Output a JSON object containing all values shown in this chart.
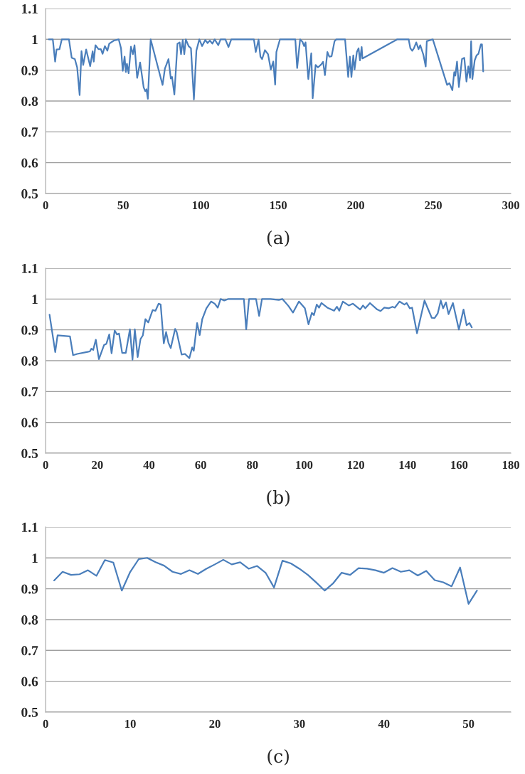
{
  "chart_data": [
    {
      "type": "line",
      "title": "(a)",
      "xlim": [
        0,
        300
      ],
      "xticks": [
        0,
        50,
        100,
        150,
        200,
        250,
        300
      ],
      "ylim": [
        0.5,
        1.1
      ],
      "yticks": [
        0.5,
        0.6,
        0.7,
        0.8,
        0.9,
        1,
        1.1
      ],
      "grid": "y",
      "marker": "none",
      "line_style": "solid",
      "series": [
        {
          "color": "#4a7ebb",
          "x": [
            2.0,
            4.6,
            6.1,
            7.0,
            8.9,
            10.4,
            15.0,
            16.8,
            18.8,
            20.3,
            21.9,
            23.1,
            24.2,
            26.1,
            28.7,
            30.3,
            31.0,
            32.1,
            34.1,
            35.6,
            36.7,
            38.2,
            39.8,
            41.0,
            44.0,
            47.1,
            48.6,
            49.7,
            50.9,
            51.7,
            52.4,
            53.5,
            55.0,
            56.3,
            57.3,
            59.0,
            60.9,
            63.2,
            64.2,
            65.0,
            65.9,
            67.7,
            75.4,
            76.9,
            79.2,
            80.7,
            81.5,
            83.0,
            85.0,
            86.4,
            87.3,
            88.4,
            89.4,
            90.4,
            92.2,
            93.7,
            95.6,
            97.2,
            99.1,
            100.9,
            102.9,
            104.4,
            105.9,
            107.5,
            109.0,
            111.3,
            112.8,
            115.9,
            117.9,
            119.7,
            134.3,
            135.5,
            137.3,
            138.5,
            139.6,
            141.4,
            143.4,
            145.2,
            146.8,
            148.0,
            148.8,
            151.1,
            161.0,
            162.2,
            164.1,
            165.6,
            166.7,
            167.6,
            169.4,
            171.3,
            172.2,
            174.1,
            175.6,
            177.8,
            178.9,
            180.1,
            181.7,
            182.9,
            184.4,
            186.3,
            187.5,
            193.1,
            195.1,
            196.2,
            197.2,
            198.4,
            199.2,
            200.7,
            201.8,
            202.7,
            203.8,
            204.3,
            226.8,
            234.1,
            235.2,
            236.4,
            237.5,
            239.0,
            240.5,
            241.6,
            243.6,
            245.1,
            245.8,
            249.7,
            258.9,
            260.4,
            262.3,
            263.5,
            264.2,
            265.3,
            266.5,
            268.5,
            270.0,
            271.4,
            272.6,
            273.7,
            274.4,
            275.2,
            276.7,
            277.9,
            279.1,
            280.7,
            281.4,
            282.2
          ],
          "values": [
            1.0,
            1.0,
            0.928,
            0.967,
            0.968,
            1.0,
            1.0,
            0.94,
            0.936,
            0.909,
            0.819,
            0.962,
            0.917,
            0.967,
            0.913,
            0.961,
            0.928,
            0.981,
            0.968,
            0.968,
            0.953,
            0.978,
            0.963,
            0.986,
            0.996,
            1.0,
            0.971,
            0.898,
            0.944,
            0.894,
            0.921,
            0.89,
            0.976,
            0.952,
            0.981,
            0.875,
            0.925,
            0.844,
            0.832,
            0.838,
            0.807,
            1.0,
            0.852,
            0.905,
            0.936,
            0.873,
            0.878,
            0.821,
            0.986,
            0.99,
            0.952,
            0.998,
            0.952,
            1.0,
            0.978,
            0.971,
            0.805,
            0.963,
            1.0,
            0.978,
            0.998,
            0.988,
            0.996,
            0.986,
            1.0,
            0.981,
            1.0,
            1.0,
            0.975,
            1.0,
            1.0,
            0.959,
            0.999,
            0.944,
            0.936,
            0.965,
            0.952,
            0.902,
            0.928,
            0.853,
            0.959,
            1.0,
            1.0,
            0.907,
            1.0,
            0.992,
            0.978,
            0.99,
            0.871,
            0.955,
            0.809,
            0.917,
            0.909,
            0.919,
            0.927,
            0.884,
            0.959,
            0.944,
            0.945,
            0.994,
            1.0,
            1.0,
            0.878,
            0.944,
            0.878,
            0.948,
            0.902,
            0.959,
            0.971,
            0.932,
            0.975,
            0.938,
            1.0,
            1.0,
            0.971,
            0.963,
            0.971,
            0.99,
            0.968,
            0.981,
            0.95,
            0.912,
            0.994,
            1.0,
            0.852,
            0.858,
            0.835,
            0.894,
            0.882,
            0.928,
            0.845,
            0.936,
            0.94,
            0.863,
            0.912,
            0.875,
            0.994,
            0.871,
            0.932,
            0.948,
            0.953,
            0.984,
            0.984,
            0.896
          ]
        }
      ]
    },
    {
      "type": "line",
      "title": "(b)",
      "xlim": [
        0,
        180
      ],
      "xticks": [
        0,
        20,
        40,
        60,
        80,
        100,
        120,
        140,
        160,
        180
      ],
      "ylim": [
        0.5,
        1.1
      ],
      "yticks": [
        0.5,
        0.6,
        0.7,
        0.8,
        0.9,
        1,
        1.1
      ],
      "grid": "y",
      "marker": "none",
      "line_style": "solid",
      "series": [
        {
          "color": "#4a7ebb",
          "x": [
            1.5,
            3.7,
            4.6,
            9.4,
            10.6,
            12.2,
            15.9,
            17.1,
            17.7,
            18.4,
            19.4,
            20.6,
            22.6,
            23.5,
            24.6,
            25.5,
            26.7,
            27.6,
            28.4,
            29.6,
            31.0,
            32.6,
            33.6,
            34.5,
            35.6,
            36.7,
            37.6,
            38.6,
            39.7,
            41.4,
            42.5,
            43.7,
            44.5,
            45.7,
            46.6,
            47.5,
            48.4,
            50.1,
            50.7,
            52.6,
            53.9,
            55.6,
            56.7,
            57.3,
            58.6,
            59.6,
            60.6,
            62.2,
            64.0,
            65.4,
            66.6,
            67.7,
            69.1,
            70.7,
            76.7,
            77.6,
            78.7,
            81.4,
            82.6,
            83.7,
            87.0,
            90.2,
            91.6,
            93.9,
            95.7,
            98.0,
            100.3,
            101.7,
            103.0,
            103.8,
            104.9,
            105.8,
            106.7,
            109.0,
            111.6,
            112.7,
            113.6,
            115.0,
            117.3,
            118.9,
            121.7,
            122.8,
            123.7,
            125.5,
            128.3,
            129.6,
            131.0,
            132.8,
            134.2,
            135.1,
            136.9,
            138.8,
            139.7,
            140.9,
            141.8,
            143.7,
            146.6,
            149.4,
            150.5,
            151.7,
            152.9,
            153.8,
            154.9,
            155.9,
            157.6,
            159.9,
            161.7,
            162.9,
            164.0,
            164.9
          ],
          "values": [
            0.949,
            0.828,
            0.882,
            0.879,
            0.818,
            0.822,
            0.828,
            0.83,
            0.839,
            0.835,
            0.868,
            0.805,
            0.851,
            0.855,
            0.885,
            0.824,
            0.898,
            0.885,
            0.888,
            0.825,
            0.825,
            0.902,
            0.803,
            0.902,
            0.812,
            0.87,
            0.882,
            0.935,
            0.924,
            0.964,
            0.962,
            0.985,
            0.982,
            0.856,
            0.893,
            0.858,
            0.841,
            0.903,
            0.893,
            0.82,
            0.822,
            0.808,
            0.843,
            0.832,
            0.922,
            0.883,
            0.935,
            0.97,
            0.992,
            0.985,
            0.972,
            1.0,
            0.995,
            1.0,
            1.0,
            0.902,
            1.0,
            1.0,
            0.945,
            1.0,
            1.0,
            0.997,
            1.0,
            0.978,
            0.956,
            0.992,
            0.97,
            0.918,
            0.955,
            0.948,
            0.982,
            0.972,
            0.987,
            0.972,
            0.962,
            0.975,
            0.962,
            0.992,
            0.979,
            0.985,
            0.966,
            0.979,
            0.97,
            0.987,
            0.966,
            0.961,
            0.972,
            0.97,
            0.975,
            0.972,
            0.992,
            0.982,
            0.987,
            0.97,
            0.972,
            0.889,
            0.995,
            0.939,
            0.938,
            0.953,
            0.995,
            0.97,
            0.989,
            0.951,
            0.987,
            0.901,
            0.966,
            0.915,
            0.922,
            0.908
          ]
        }
      ]
    },
    {
      "type": "line",
      "title": "(c)",
      "xlim": [
        0,
        55
      ],
      "xticks": [
        0,
        10,
        20,
        30,
        40,
        50
      ],
      "ylim": [
        0.5,
        1.1
      ],
      "yticks": [
        0.5,
        0.6,
        0.7,
        0.8,
        0.9,
        1,
        1.1
      ],
      "grid": "y",
      "marker": "none",
      "line_style": "solid",
      "series": [
        {
          "color": "#4a7ebb",
          "x": [
            1,
            2,
            3,
            4,
            5,
            6,
            7,
            8,
            9,
            10,
            11,
            12,
            13,
            14,
            15,
            16,
            17,
            18,
            19,
            20,
            21,
            22,
            23,
            24,
            25,
            26,
            27,
            28,
            29,
            30,
            31,
            32,
            33,
            34,
            35,
            36,
            37,
            38,
            39,
            40,
            41,
            42,
            43,
            44,
            45,
            46,
            47,
            48,
            49,
            50,
            51
          ],
          "values": [
            0.927,
            0.955,
            0.945,
            0.947,
            0.96,
            0.942,
            0.993,
            0.985,
            0.894,
            0.955,
            0.996,
            1.0,
            0.986,
            0.975,
            0.955,
            0.948,
            0.96,
            0.948,
            0.965,
            0.979,
            0.994,
            0.979,
            0.986,
            0.965,
            0.974,
            0.952,
            0.904,
            0.991,
            0.982,
            0.965,
            0.945,
            0.92,
            0.894,
            0.918,
            0.952,
            0.945,
            0.967,
            0.965,
            0.96,
            0.952,
            0.967,
            0.955,
            0.96,
            0.943,
            0.958,
            0.928,
            0.921,
            0.908,
            0.969,
            0.851,
            0.894
          ]
        }
      ]
    }
  ]
}
